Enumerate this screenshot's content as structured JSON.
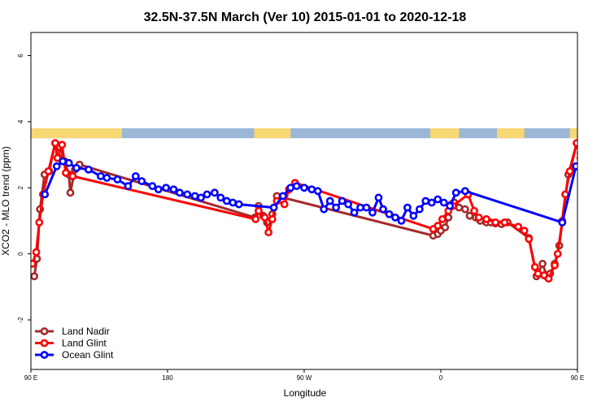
{
  "chart_data": {
    "type": "line",
    "title": "32.5N-37.5N March (Ver 10)   2015-01-01 to 2020-12-18",
    "xlabel": "Longitude",
    "ylabel": "XCO2 - MLO trend (ppm)",
    "xlim": [
      90,
      450
    ],
    "ylim": [
      -3.5,
      6.7
    ],
    "x_ticks": [
      {
        "value": 90,
        "label": "90 E"
      },
      {
        "value": 180,
        "label": "180"
      },
      {
        "value": 270,
        "label": "90 W"
      },
      {
        "value": 360,
        "label": "0"
      },
      {
        "value": 450,
        "label": "90 E"
      },
      {
        "value": 540,
        "label": "180"
      }
    ],
    "y_ticks": [
      -2,
      0,
      2,
      4,
      6
    ],
    "grid": false,
    "legend_position": "bottom-left",
    "land_mask_band": {
      "y_range": [
        3.5,
        3.8
      ],
      "ocean_color": "#9bb7d8",
      "land_color": "#f7d772"
    },
    "land_segments": [
      [
        90,
        150
      ],
      [
        237,
        261
      ],
      [
        353,
        372
      ],
      [
        397,
        415
      ],
      [
        445,
        472
      ],
      [
        505,
        533
      ],
      [
        535,
        540
      ]
    ],
    "series": [
      {
        "name": "Land Nadir",
        "color": "#a52a2a",
        "points": [
          [
            92.2,
            -0.68
          ],
          [
            94,
            -0.15
          ],
          [
            96,
            1.35
          ],
          [
            99,
            2.4
          ],
          [
            102,
            2.5
          ],
          [
            106,
            3.35
          ],
          [
            108.6,
            3.05
          ],
          [
            112.3,
            2.8
          ],
          [
            115,
            2.4
          ],
          [
            116,
            1.85
          ],
          [
            119,
            2.55
          ],
          [
            122,
            2.7
          ],
          [
            237.5,
            1.1
          ],
          [
            240,
            1.45
          ],
          [
            243,
            1.15
          ],
          [
            245.5,
            0.95
          ],
          [
            249,
            1.2
          ],
          [
            252,
            1.75
          ],
          [
            355,
            0.55
          ],
          [
            358,
            0.6
          ],
          [
            360,
            0.7
          ],
          [
            362.8,
            0.8
          ],
          [
            365,
            1.1
          ],
          [
            367,
            1.5
          ],
          [
            369,
            1.55
          ],
          [
            372,
            1.4
          ],
          [
            376,
            1.35
          ],
          [
            379,
            1.15
          ],
          [
            383,
            1.1
          ],
          [
            386,
            1.0
          ],
          [
            390,
            0.95
          ],
          [
            393,
            0.95
          ],
          [
            396,
            0.92
          ],
          [
            400,
            0.9
          ],
          [
            404,
            0.95
          ],
          [
            418,
            0.48
          ],
          [
            423,
            -0.68
          ],
          [
            427,
            -0.3
          ],
          [
            430,
            -0.7
          ],
          [
            432,
            -0.6
          ],
          [
            435,
            -0.3
          ],
          [
            438,
            0.25
          ],
          [
            444,
            2.4
          ],
          [
            449.5,
            3.35
          ],
          [
            452,
            3.05
          ],
          [
            456,
            2.85
          ],
          [
            458,
            2.4
          ],
          [
            460,
            1.85
          ],
          [
            463,
            2.55
          ],
          [
            466,
            2.7
          ]
        ]
      },
      {
        "name": "Land Glint",
        "color": "#ff0000",
        "points": [
          [
            91,
            -0.3
          ],
          [
            93.5,
            0.05
          ],
          [
            95.5,
            0.95
          ],
          [
            98,
            1.8
          ],
          [
            101.5,
            2.5
          ],
          [
            106,
            3.35
          ],
          [
            107.5,
            2.9
          ],
          [
            110.5,
            3.3
          ],
          [
            113,
            2.45
          ],
          [
            117.5,
            2.35
          ],
          [
            238,
            1.05
          ],
          [
            240,
            1.3
          ],
          [
            244,
            1.1
          ],
          [
            246.5,
            0.65
          ],
          [
            249,
            1.05
          ],
          [
            252,
            1.6
          ],
          [
            257,
            1.5
          ],
          [
            260,
            1.95
          ],
          [
            264,
            2.15
          ],
          [
            355,
            0.75
          ],
          [
            358,
            0.85
          ],
          [
            361,
            1.05
          ],
          [
            365,
            1.3
          ],
          [
            368,
            1.45
          ],
          [
            378,
            1.8
          ],
          [
            382,
            1.3
          ],
          [
            385,
            1.1
          ],
          [
            390,
            1.05
          ],
          [
            396,
            0.95
          ],
          [
            402,
            0.95
          ],
          [
            411,
            0.82
          ],
          [
            415,
            0.7
          ],
          [
            418,
            0.45
          ],
          [
            422,
            -0.4
          ],
          [
            424,
            -0.6
          ],
          [
            428,
            -0.65
          ],
          [
            431,
            -0.75
          ],
          [
            435,
            -0.35
          ],
          [
            437,
            0.0
          ],
          [
            440,
            1.0
          ],
          [
            442,
            1.8
          ],
          [
            445,
            2.5
          ],
          [
            449.5,
            3.35
          ],
          [
            452,
            2.9
          ],
          [
            455,
            3.3
          ],
          [
            458,
            2.45
          ],
          [
            462,
            2.35
          ]
        ]
      },
      {
        "name": "Ocean Glint",
        "color": "#0000ff",
        "points": [
          [
            99.2,
            1.8
          ],
          [
            107,
            2.65
          ],
          [
            111,
            2.8
          ],
          [
            115,
            2.75
          ],
          [
            120,
            2.6
          ],
          [
            128,
            2.55
          ],
          [
            136,
            2.35
          ],
          [
            140,
            2.3
          ],
          [
            147,
            2.25
          ],
          [
            154,
            2.05
          ],
          [
            159,
            2.35
          ],
          [
            163,
            2.2
          ],
          [
            170,
            2.05
          ],
          [
            174,
            1.95
          ],
          [
            179,
            2.0
          ],
          [
            184,
            1.95
          ],
          [
            188,
            1.85
          ],
          [
            193,
            1.8
          ],
          [
            198,
            1.75
          ],
          [
            202,
            1.7
          ],
          [
            206,
            1.8
          ],
          [
            211,
            1.85
          ],
          [
            215,
            1.7
          ],
          [
            219,
            1.6
          ],
          [
            223,
            1.55
          ],
          [
            227,
            1.5
          ],
          [
            250,
            1.4
          ],
          [
            256,
            1.75
          ],
          [
            261,
            2.0
          ],
          [
            265,
            2.05
          ],
          [
            270,
            2.0
          ],
          [
            275,
            1.95
          ],
          [
            279,
            1.9
          ],
          [
            283,
            1.35
          ],
          [
            287,
            1.6
          ],
          [
            291,
            1.4
          ],
          [
            295,
            1.6
          ],
          [
            299,
            1.5
          ],
          [
            303,
            1.25
          ],
          [
            307,
            1.4
          ],
          [
            311,
            1.4
          ],
          [
            315,
            1.25
          ],
          [
            319,
            1.7
          ],
          [
            322,
            1.35
          ],
          [
            326,
            1.2
          ],
          [
            330,
            1.1
          ],
          [
            334,
            1.0
          ],
          [
            338,
            1.4
          ],
          [
            342,
            1.15
          ],
          [
            346,
            1.35
          ],
          [
            350,
            1.6
          ],
          [
            354,
            1.55
          ],
          [
            358,
            1.65
          ],
          [
            362,
            1.55
          ],
          [
            366,
            1.45
          ],
          [
            370,
            1.85
          ],
          [
            376,
            1.9
          ],
          [
            440,
            0.95
          ],
          [
            449,
            2.65
          ],
          [
            453,
            2.8
          ],
          [
            457,
            2.75
          ],
          [
            461,
            2.6
          ],
          [
            466,
            2.55
          ],
          [
            471,
            2.6
          ],
          [
            475,
            2.5
          ],
          [
            479,
            2.35
          ],
          [
            483,
            2.35
          ],
          [
            487,
            2.25
          ],
          [
            491,
            2.05
          ],
          [
            495,
            2.3
          ]
        ]
      }
    ]
  }
}
